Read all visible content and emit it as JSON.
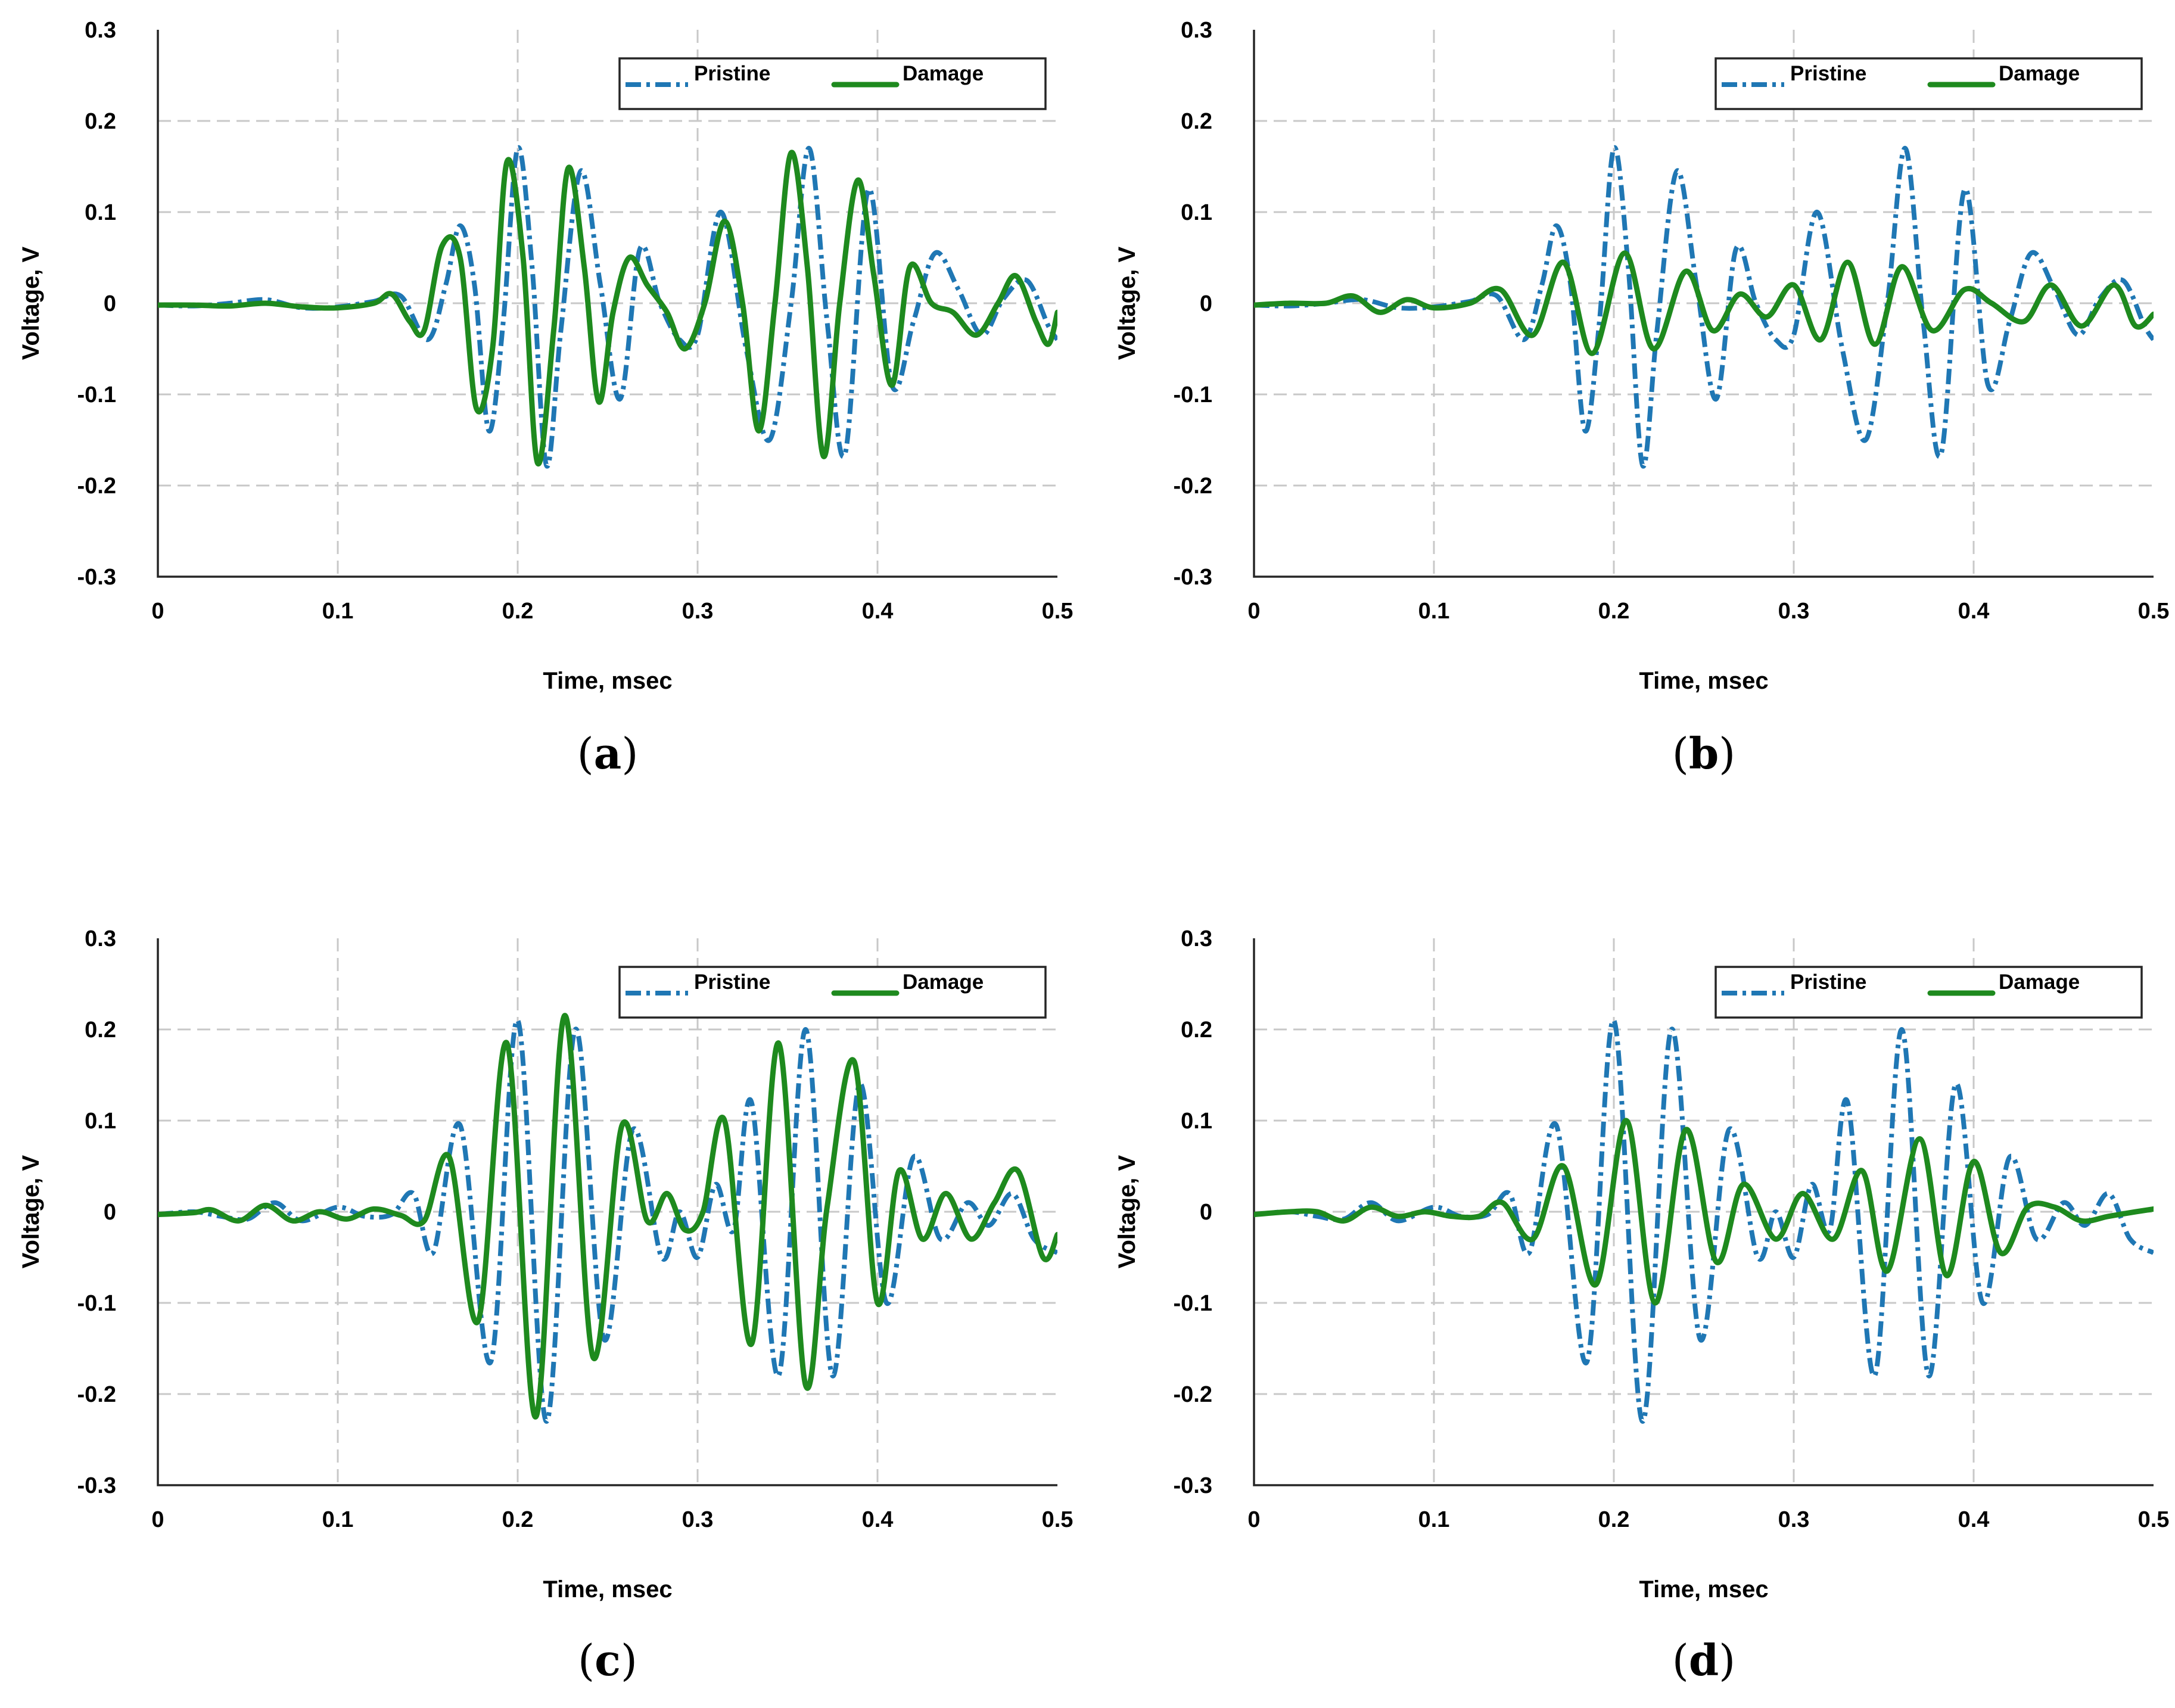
{
  "colors": {
    "pristine": "#1f77b4",
    "damage": "#1e8a1e"
  },
  "chart_data": [
    {
      "type": "line",
      "panel_label": "a",
      "xlabel": "Time, msec",
      "ylabel": "Voltage, V",
      "xlim": [
        0,
        0.5
      ],
      "ylim": [
        -0.3,
        0.3
      ],
      "xticks": [
        "0",
        "0.1",
        "0.2",
        "0.3",
        "0.4",
        "0.5"
      ],
      "yticks": [
        "0.3",
        "0.2",
        "0.1",
        "0",
        "-0.1",
        "-0.2",
        "-0.3"
      ],
      "grid": true,
      "legend_position": "top-right",
      "series": [
        {
          "name": "Pristine",
          "style": "dash-dot",
          "x": [
            0,
            0.02,
            0.04,
            0.06,
            0.08,
            0.1,
            0.12,
            0.135,
            0.15,
            0.16,
            0.168,
            0.176,
            0.184,
            0.192,
            0.2,
            0.208,
            0.216,
            0.224,
            0.235,
            0.246,
            0.257,
            0.268,
            0.279,
            0.29,
            0.3,
            0.313,
            0.327,
            0.34,
            0.352,
            0.362,
            0.372,
            0.382,
            0.395,
            0.408,
            0.42,
            0.432,
            0.445,
            0.458,
            0.47,
            0.483,
            0.495,
            0.5
          ],
          "y": [
            -0.002,
            -0.003,
            0.0,
            0.004,
            -0.005,
            -0.004,
            0.002,
            0.008,
            -0.04,
            0.02,
            0.085,
            0.02,
            -0.14,
            -0.02,
            0.17,
            0.04,
            -0.178,
            -0.03,
            0.145,
            0.02,
            -0.105,
            0.06,
            0.0,
            -0.04,
            -0.035,
            0.1,
            -0.05,
            -0.15,
            0.0,
            0.17,
            -0.02,
            -0.165,
            0.125,
            -0.09,
            -0.02,
            0.055,
            0.015,
            -0.035,
            0.005,
            0.025,
            -0.025,
            -0.04
          ]
        },
        {
          "name": "Damage",
          "style": "solid",
          "x": [
            0,
            0.02,
            0.04,
            0.06,
            0.08,
            0.1,
            0.12,
            0.13,
            0.14,
            0.148,
            0.158,
            0.168,
            0.177,
            0.186,
            0.194,
            0.203,
            0.211,
            0.22,
            0.228,
            0.237,
            0.245,
            0.253,
            0.262,
            0.272,
            0.283,
            0.293,
            0.304,
            0.315,
            0.325,
            0.334,
            0.343,
            0.352,
            0.361,
            0.37,
            0.379,
            0.389,
            0.398,
            0.408,
            0.418,
            0.43,
            0.442,
            0.455,
            0.467,
            0.477,
            0.488,
            0.495,
            0.5
          ],
          "y": [
            -0.002,
            -0.002,
            -0.003,
            0.0,
            -0.004,
            -0.005,
            0.0,
            0.01,
            -0.02,
            -0.03,
            0.063,
            0.05,
            -0.115,
            -0.05,
            0.155,
            0.05,
            -0.175,
            -0.03,
            0.148,
            0.04,
            -0.108,
            -0.01,
            0.05,
            0.02,
            -0.01,
            -0.05,
            0.0,
            0.09,
            0.0,
            -0.14,
            0.0,
            0.165,
            0.04,
            -0.168,
            0.0,
            0.135,
            0.03,
            -0.09,
            0.04,
            0.0,
            -0.01,
            -0.035,
            0.0,
            0.03,
            -0.02,
            -0.045,
            -0.01
          ]
        }
      ]
    },
    {
      "type": "line",
      "panel_label": "b",
      "xlabel": "Time, msec",
      "ylabel": "Voltage, V",
      "xlim": [
        0,
        0.5
      ],
      "ylim": [
        -0.3,
        0.3
      ],
      "xticks": [
        "0",
        "0.1",
        "0.2",
        "0.3",
        "0.4",
        "0.5"
      ],
      "yticks": [
        "0.3",
        "0.2",
        "0.1",
        "0",
        "-0.1",
        "-0.2",
        "-0.3"
      ],
      "grid": true,
      "legend_position": "top-right",
      "series": [
        {
          "name": "Pristine",
          "style": "dash-dot",
          "x": [
            0,
            0.02,
            0.04,
            0.06,
            0.08,
            0.1,
            0.12,
            0.135,
            0.15,
            0.16,
            0.168,
            0.176,
            0.184,
            0.192,
            0.2,
            0.208,
            0.216,
            0.224,
            0.235,
            0.246,
            0.257,
            0.268,
            0.279,
            0.29,
            0.3,
            0.313,
            0.327,
            0.34,
            0.352,
            0.362,
            0.372,
            0.382,
            0.395,
            0.408,
            0.42,
            0.432,
            0.445,
            0.458,
            0.47,
            0.483,
            0.495,
            0.5
          ],
          "y": [
            -0.002,
            -0.003,
            0.0,
            0.004,
            -0.005,
            -0.004,
            0.002,
            0.008,
            -0.04,
            0.02,
            0.085,
            0.02,
            -0.14,
            -0.02,
            0.17,
            0.04,
            -0.178,
            -0.03,
            0.145,
            0.02,
            -0.105,
            0.06,
            0.0,
            -0.04,
            -0.035,
            0.1,
            -0.05,
            -0.15,
            0.0,
            0.17,
            -0.02,
            -0.165,
            0.125,
            -0.09,
            -0.02,
            0.055,
            0.015,
            -0.035,
            0.005,
            0.025,
            -0.025,
            -0.04
          ]
        },
        {
          "name": "Damage",
          "style": "solid",
          "x": [
            0,
            0.02,
            0.04,
            0.055,
            0.07,
            0.085,
            0.1,
            0.12,
            0.137,
            0.155,
            0.172,
            0.188,
            0.206,
            0.222,
            0.24,
            0.255,
            0.27,
            0.285,
            0.3,
            0.315,
            0.33,
            0.345,
            0.36,
            0.377,
            0.395,
            0.41,
            0.428,
            0.443,
            0.46,
            0.478,
            0.49,
            0.5
          ],
          "y": [
            -0.002,
            0.0,
            0.0,
            0.008,
            -0.01,
            0.004,
            -0.005,
            0.0,
            0.015,
            -0.035,
            0.045,
            -0.055,
            0.055,
            -0.05,
            0.035,
            -0.03,
            0.01,
            -0.015,
            0.02,
            -0.04,
            0.045,
            -0.045,
            0.04,
            -0.03,
            0.015,
            0.0,
            -0.02,
            0.02,
            -0.025,
            0.02,
            -0.025,
            -0.012
          ]
        }
      ]
    },
    {
      "type": "line",
      "panel_label": "c",
      "xlabel": "Time, msec",
      "ylabel": "Voltage, V",
      "xlim": [
        0,
        0.5
      ],
      "ylim": [
        -0.3,
        0.3
      ],
      "xticks": [
        "0",
        "0.1",
        "0.2",
        "0.3",
        "0.4",
        "0.5"
      ],
      "yticks": [
        "0.3",
        "0.2",
        "0.1",
        "0",
        "-0.1",
        "-0.2",
        "-0.3"
      ],
      "grid": true,
      "legend_position": "top-right",
      "series": [
        {
          "name": "Pristine",
          "style": "dash-dot",
          "x": [
            0,
            0.02,
            0.035,
            0.05,
            0.065,
            0.08,
            0.1,
            0.115,
            0.13,
            0.142,
            0.153,
            0.168,
            0.185,
            0.2,
            0.216,
            0.232,
            0.248,
            0.264,
            0.28,
            0.29,
            0.3,
            0.31,
            0.32,
            0.33,
            0.345,
            0.36,
            0.375,
            0.39,
            0.405,
            0.42,
            0.435,
            0.45,
            0.462,
            0.475,
            0.487,
            0.5
          ],
          "y": [
            -0.003,
            0.0,
            -0.005,
            -0.008,
            0.01,
            -0.01,
            0.005,
            -0.005,
            -0.003,
            0.02,
            -0.045,
            0.095,
            -0.165,
            0.21,
            -0.23,
            0.2,
            -0.14,
            0.09,
            -0.05,
            0.0,
            -0.05,
            0.03,
            -0.02,
            0.12,
            -0.18,
            0.2,
            -0.18,
            0.14,
            -0.1,
            0.06,
            -0.03,
            0.01,
            -0.015,
            0.02,
            -0.03,
            -0.045
          ]
        },
        {
          "name": "Damage",
          "style": "solid",
          "x": [
            0,
            0.02,
            0.03,
            0.045,
            0.06,
            0.075,
            0.09,
            0.105,
            0.12,
            0.135,
            0.148,
            0.162,
            0.178,
            0.194,
            0.21,
            0.226,
            0.242,
            0.258,
            0.272,
            0.283,
            0.293,
            0.303,
            0.315,
            0.33,
            0.345,
            0.36,
            0.372,
            0.387,
            0.4,
            0.412,
            0.425,
            0.438,
            0.452,
            0.465,
            0.478,
            0.492,
            0.5
          ],
          "y": [
            -0.003,
            -0.001,
            0.002,
            -0.01,
            0.007,
            -0.01,
            0.0,
            -0.008,
            0.003,
            -0.004,
            -0.01,
            0.06,
            -0.12,
            0.185,
            -0.225,
            0.215,
            -0.16,
            0.095,
            -0.01,
            0.02,
            -0.02,
            0.0,
            0.1,
            -0.145,
            0.185,
            -0.19,
            0.005,
            0.165,
            -0.1,
            0.045,
            -0.03,
            0.02,
            -0.03,
            0.01,
            0.045,
            -0.05,
            -0.025
          ]
        }
      ]
    },
    {
      "type": "line",
      "panel_label": "d",
      "xlabel": "Time, msec",
      "ylabel": "Voltage, V",
      "xlim": [
        0,
        0.5
      ],
      "ylim": [
        -0.3,
        0.3
      ],
      "xticks": [
        "0",
        "0.1",
        "0.2",
        "0.3",
        "0.4",
        "0.5"
      ],
      "yticks": [
        "0.3",
        "0.2",
        "0.1",
        "0",
        "-0.1",
        "-0.2",
        "-0.3"
      ],
      "grid": true,
      "legend_position": "top-right",
      "series": [
        {
          "name": "Pristine",
          "style": "dash-dot",
          "x": [
            0,
            0.02,
            0.035,
            0.05,
            0.065,
            0.08,
            0.1,
            0.115,
            0.13,
            0.142,
            0.153,
            0.168,
            0.185,
            0.2,
            0.216,
            0.232,
            0.248,
            0.264,
            0.28,
            0.29,
            0.3,
            0.31,
            0.32,
            0.33,
            0.345,
            0.36,
            0.375,
            0.39,
            0.405,
            0.42,
            0.435,
            0.45,
            0.462,
            0.475,
            0.487,
            0.5
          ],
          "y": [
            -0.003,
            0.0,
            -0.005,
            -0.008,
            0.01,
            -0.01,
            0.005,
            -0.005,
            -0.003,
            0.02,
            -0.045,
            0.095,
            -0.165,
            0.21,
            -0.23,
            0.2,
            -0.14,
            0.09,
            -0.05,
            0.0,
            -0.05,
            0.03,
            -0.02,
            0.12,
            -0.18,
            0.2,
            -0.18,
            0.14,
            -0.1,
            0.06,
            -0.03,
            0.01,
            -0.015,
            0.02,
            -0.03,
            -0.045
          ]
        },
        {
          "name": "Damage",
          "style": "solid",
          "x": [
            0,
            0.02,
            0.035,
            0.05,
            0.065,
            0.08,
            0.095,
            0.11,
            0.125,
            0.138,
            0.155,
            0.172,
            0.19,
            0.207,
            0.223,
            0.24,
            0.257,
            0.272,
            0.29,
            0.305,
            0.322,
            0.338,
            0.352,
            0.37,
            0.385,
            0.4,
            0.415,
            0.43,
            0.445,
            0.46,
            0.475,
            0.49,
            0.5
          ],
          "y": [
            -0.003,
            0.0,
            0.0,
            -0.01,
            0.005,
            -0.005,
            0.0,
            -0.005,
            -0.005,
            0.01,
            -0.03,
            0.05,
            -0.08,
            0.1,
            -0.1,
            0.09,
            -0.055,
            0.03,
            -0.03,
            0.02,
            -0.03,
            0.045,
            -0.065,
            0.08,
            -0.07,
            0.055,
            -0.045,
            0.005,
            0.005,
            -0.01,
            -0.005,
            0.0,
            0.003
          ]
        }
      ]
    }
  ]
}
